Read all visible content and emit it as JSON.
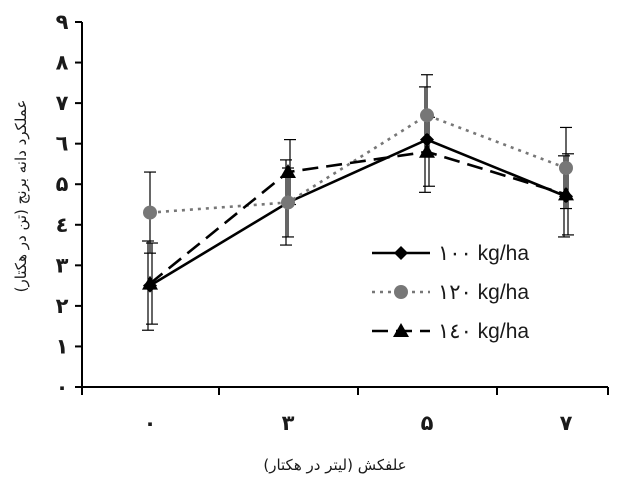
{
  "chart_data": {
    "type": "line",
    "title": "",
    "xlabel": "علفکش (لیتر در هکتار)",
    "ylabel": "عملکرد دانه برنج (تن در هکتار)",
    "categories": [
      "۰",
      "۳",
      "۵",
      "۷"
    ],
    "y_tick_labels": [
      "۰",
      "۱",
      "۲",
      "۳",
      "٤",
      "۵",
      "٦",
      "۷",
      "۸",
      "۹"
    ],
    "ylim": [
      0,
      9
    ],
    "grid": false,
    "legend_position": "right",
    "series": [
      {
        "name": "۱۰۰ kg/ha",
        "values": [
          2.5,
          4.55,
          6.1,
          4.7
        ],
        "error": [
          1.1,
          1.05,
          1.3,
          1.0
        ],
        "color": "#000000",
        "line_style": "solid",
        "marker": "diamond"
      },
      {
        "name": "۱۲۰ kg/ha",
        "values": [
          4.3,
          4.55,
          6.7,
          5.4
        ],
        "error": [
          1.0,
          0.85,
          1.0,
          1.0
        ],
        "color": "#777777",
        "line_style": "dotted",
        "marker": "circle"
      },
      {
        "name": "۱٤۰ kg/ha",
        "values": [
          2.55,
          5.3,
          5.8,
          4.75
        ],
        "error": [
          1.0,
          0.8,
          0.85,
          1.0
        ],
        "color": "#000000",
        "line_style": "dashed",
        "marker": "triangle"
      }
    ]
  }
}
